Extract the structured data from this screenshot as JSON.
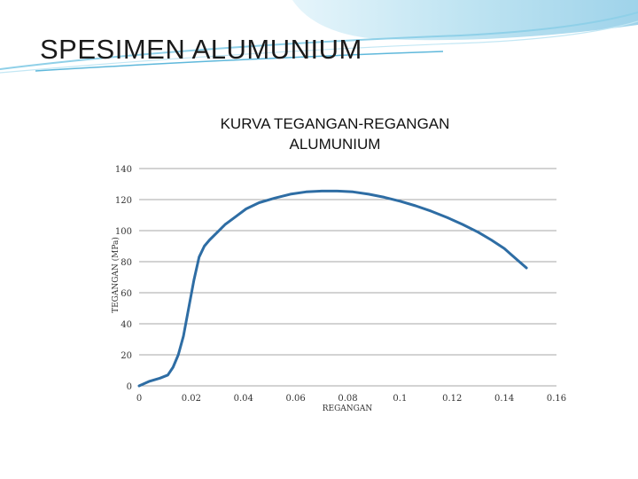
{
  "slide": {
    "title": "SPESIMEN ALUMUNIUM",
    "accent_color": "#7ec8e3"
  },
  "chart_data": {
    "type": "line",
    "title_lines": [
      "KURVA TEGANGAN-REGANGAN",
      "ALUMUNIUM"
    ],
    "xlabel": "REGANGAN",
    "ylabel": "TEGANGAN (MPa)",
    "xlim": [
      0,
      0.16
    ],
    "ylim": [
      0,
      140
    ],
    "x_ticks": [
      0,
      0.02,
      0.04,
      0.06,
      0.08,
      0.1,
      0.12,
      0.14,
      0.16
    ],
    "x_tick_labels": [
      "0",
      "0.02",
      "0.04",
      "0.06",
      "0.08",
      "0.1",
      "0.12",
      "0.14",
      "0.16"
    ],
    "y_ticks": [
      0,
      20,
      40,
      60,
      80,
      100,
      120,
      140
    ],
    "y_tick_labels": [
      "0",
      "20",
      "40",
      "60",
      "80",
      "100",
      "120",
      "140"
    ],
    "grid": "horizontal",
    "line_color": "#2e6da4",
    "series": [
      {
        "x": [
          0,
          0.004,
          0.008,
          0.011,
          0.013,
          0.015,
          0.017,
          0.019,
          0.021,
          0.023,
          0.025,
          0.027,
          0.03,
          0.033,
          0.037,
          0.041,
          0.046,
          0.052,
          0.058,
          0.064,
          0.07,
          0.076,
          0.082,
          0.088,
          0.094,
          0.1,
          0.106,
          0.112,
          0.118,
          0.124,
          0.13,
          0.135,
          0.14,
          0.143,
          0.1485
        ],
        "y": [
          0,
          3,
          5,
          7,
          12,
          20,
          32,
          50,
          68,
          83,
          90,
          94,
          99,
          104,
          109,
          114,
          118,
          121,
          123.5,
          125,
          125.5,
          125.5,
          125,
          123.5,
          121.5,
          119,
          116,
          112.5,
          108.5,
          104,
          99,
          94,
          88.5,
          84,
          76
        ]
      }
    ]
  }
}
